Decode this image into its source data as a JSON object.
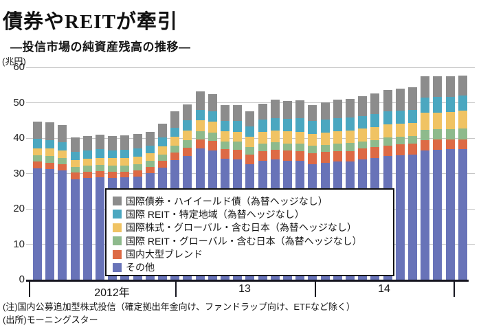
{
  "page": {
    "title": "債券やREITが牽引",
    "subtitle": "―投信市場の純資産残高の推移―",
    "unit_label": "(兆円)",
    "notes": [
      "(注)国内公募追加型株式投信（確定拠出年金向け、ファンドラップ向け、ETFなど除く）",
      "(出所)モーニングスター"
    ]
  },
  "chart_data": {
    "type": "bar",
    "stacked": true,
    "title": "債券やREITが牽引",
    "subtitle": "投信市場の純資産残高の推移",
    "ylabel": "兆円",
    "ylim": [
      0,
      60
    ],
    "y_ticks": [
      0,
      10,
      20,
      30,
      40,
      50,
      60
    ],
    "grid": true,
    "legend_position": "overlay-center-bottom",
    "x_section_labels": [
      "2012年",
      "13",
      "14"
    ],
    "n_bars": 35,
    "series": [
      {
        "name": "その他",
        "color": "#6873b8",
        "values": [
          31.5,
          31.2,
          30.8,
          28.4,
          28.7,
          28.9,
          28.7,
          28.9,
          29.1,
          30.0,
          31.7,
          33.7,
          34.9,
          37.0,
          36.5,
          34.2,
          33.9,
          32.6,
          33.6,
          33.9,
          33.6,
          33.5,
          32.6,
          33.1,
          33.3,
          33.4,
          33.9,
          34.4,
          34.9,
          35.2,
          35.3,
          36.5,
          36.7,
          36.8,
          36.8
        ]
      },
      {
        "name": "国内大型ブレンド",
        "color": "#dd6a45",
        "values": [
          1.9,
          1.9,
          1.8,
          1.8,
          1.8,
          1.8,
          1.8,
          1.6,
          1.8,
          1.8,
          1.9,
          2.2,
          2.4,
          2.7,
          2.8,
          2.6,
          2.7,
          2.7,
          2.8,
          2.8,
          2.9,
          2.9,
          3.1,
          3.0,
          3.0,
          3.0,
          3.1,
          3.1,
          3.0,
          3.1,
          3.1,
          2.9,
          2.9,
          2.9,
          2.9
        ]
      },
      {
        "name": "国際 REIT・グローバル・含む日本（為替ヘッジなし）",
        "color": "#8eba8c",
        "values": [
          1.8,
          1.8,
          1.8,
          1.6,
          1.7,
          1.7,
          1.7,
          1.8,
          1.7,
          1.8,
          1.8,
          1.9,
          2.1,
          2.3,
          2.2,
          2.3,
          2.4,
          2.2,
          2.0,
          2.1,
          1.9,
          2.0,
          2.1,
          2.0,
          2.1,
          2.2,
          2.1,
          2.0,
          2.2,
          2.1,
          2.1,
          2.9,
          2.9,
          2.9,
          3.1
        ]
      },
      {
        "name": "国際株式・グローバル・含む日本（為替ヘッジなし）",
        "color": "#f0c363",
        "values": [
          1.9,
          2.1,
          2.1,
          2.0,
          2.0,
          2.0,
          2.1,
          2.1,
          2.1,
          2.1,
          2.3,
          2.6,
          2.8,
          3.1,
          3.1,
          2.9,
          2.8,
          2.9,
          3.3,
          3.4,
          3.5,
          3.4,
          3.4,
          3.5,
          3.6,
          3.6,
          3.6,
          3.6,
          3.7,
          3.7,
          3.8,
          4.9,
          4.7,
          4.7,
          4.9
        ]
      },
      {
        "name": "国際 REIT・特定地域（為替ヘッジなし）",
        "color": "#4ba7c0",
        "values": [
          2.8,
          2.4,
          2.4,
          2.4,
          2.3,
          2.4,
          2.3,
          2.3,
          2.4,
          2.2,
          2.4,
          2.6,
          2.8,
          2.9,
          2.9,
          2.9,
          3.0,
          2.9,
          3.5,
          3.5,
          3.5,
          3.8,
          3.6,
          3.6,
          3.6,
          3.6,
          3.5,
          3.6,
          3.7,
          3.7,
          3.7,
          4.3,
          4.4,
          4.3,
          4.3
        ]
      },
      {
        "name": "国際債券・ハイイールド債（為替ヘッジなし）",
        "color": "#8c8c8c",
        "values": [
          4.7,
          5.0,
          4.7,
          3.9,
          4.0,
          4.1,
          3.9,
          4.0,
          4.1,
          3.8,
          4.0,
          4.6,
          4.6,
          5.3,
          4.9,
          4.5,
          4.5,
          4.3,
          4.5,
          5.2,
          5.1,
          5.1,
          4.6,
          4.9,
          5.3,
          5.3,
          5.7,
          6.0,
          6.0,
          6.2,
          6.4,
          6.0,
          5.8,
          5.9,
          5.7
        ]
      }
    ]
  }
}
